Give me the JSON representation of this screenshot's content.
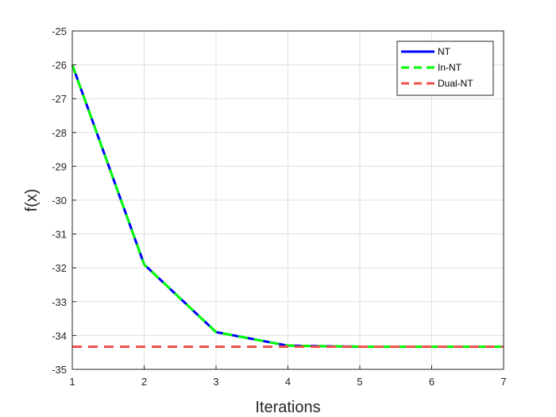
{
  "chart_data": {
    "type": "line",
    "title": "",
    "xlabel": "Iterations",
    "ylabel": "f(x)",
    "xlim": [
      1,
      7
    ],
    "ylim": [
      -35,
      -25
    ],
    "xticks": [
      1,
      2,
      3,
      4,
      5,
      6,
      7
    ],
    "yticks": [
      -35,
      -34,
      -33,
      -32,
      -31,
      -30,
      -29,
      -28,
      -27,
      -26,
      -25
    ],
    "grid": true,
    "legend_position": "top-right",
    "series": [
      {
        "name": "NT",
        "color": "#0000ff",
        "style": "solid",
        "x": [
          1,
          2,
          3,
          4,
          5,
          6
        ],
        "y": [
          -26.0,
          -31.9,
          -33.9,
          -34.3,
          -34.33,
          -34.33
        ]
      },
      {
        "name": "In-NT",
        "color": "#00ff00",
        "style": "dashed",
        "x": [
          1,
          2,
          3,
          4,
          5,
          6,
          7
        ],
        "y": [
          -26.0,
          -31.9,
          -33.9,
          -34.3,
          -34.33,
          -34.33,
          -34.33
        ]
      },
      {
        "name": "Dual-NT",
        "color": "#f0504a",
        "style": "dashed",
        "x": [
          1,
          7
        ],
        "y": [
          -34.33,
          -34.33
        ]
      }
    ]
  }
}
